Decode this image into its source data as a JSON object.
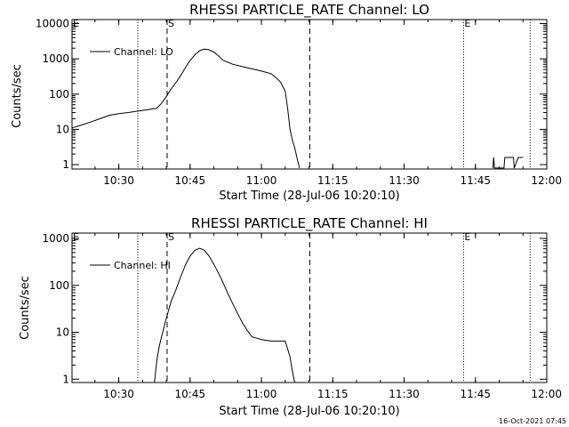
{
  "page": {
    "stamp": "16-Oct-2021 07:45"
  },
  "chart_data": [
    {
      "type": "line",
      "title": "RHESSI PARTICLE_RATE Channel: LO",
      "xlabel": "Start Time (28-Jul-06 10:20:10)",
      "ylabel": "Counts/sec",
      "y_scale": "log",
      "xlim": [
        "10:20:10",
        "12:00:00"
      ],
      "ylim": [
        0.75,
        13000
      ],
      "x_ticks": [
        "10:30",
        "10:45",
        "11:00",
        "11:15",
        "11:30",
        "11:45",
        "12:00"
      ],
      "y_ticks": [
        "1",
        "10",
        "100",
        "1000",
        "10000"
      ],
      "legend": {
        "position": "top-left",
        "entries": [
          "Channel: LO"
        ]
      },
      "markers": [
        {
          "label": "E",
          "time": "10:20:10",
          "style": "label-only"
        },
        {
          "label": "",
          "time": "10:34:00",
          "style": "dotted"
        },
        {
          "label": "S",
          "time": "10:40:10",
          "style": "dashed"
        },
        {
          "label": "",
          "time": "11:10:10",
          "style": "dashed"
        },
        {
          "label": "E",
          "time": "11:42:30",
          "style": "dotted"
        },
        {
          "label": "",
          "time": "11:56:30",
          "style": "dotted"
        }
      ],
      "series": [
        {
          "name": "Channel: LO",
          "segments": [
            {
              "x": [
                "10:20:10",
                "10:22:00",
                "10:24:00",
                "10:26:00",
                "10:28:00",
                "10:30:00",
                "10:32:00",
                "10:34:00",
                "10:36:00",
                "10:38:00",
                "10:39:00",
                "10:40:00",
                "10:41:00",
                "10:42:00",
                "10:43:00",
                "10:44:00",
                "10:45:00",
                "10:46:00",
                "10:47:00",
                "10:48:00",
                "10:49:00",
                "10:50:00",
                "10:51:00",
                "10:52:00",
                "10:54:00",
                "10:56:00",
                "10:58:00",
                "11:00:00",
                "11:02:00",
                "11:03:00",
                "11:04:00",
                "11:05:00",
                "11:05:30",
                "11:06:00",
                "11:06:30",
                "11:07:00",
                "11:07:30",
                "11:08:00"
              ],
              "y": [
                11,
                13,
                16,
                20,
                25,
                28,
                30,
                33,
                36,
                40,
                55,
                85,
                140,
                210,
                330,
                560,
                900,
                1300,
                1700,
                1900,
                1800,
                1550,
                1200,
                900,
                700,
                600,
                520,
                450,
                380,
                300,
                220,
                120,
                40,
                10,
                5,
                3,
                1.5,
                0.8
              ]
            },
            {
              "x": [
                "11:48:40",
                "11:48:50",
                "11:49:00",
                "11:50:00",
                "11:51:00",
                "11:51:10",
                "11:52:00",
                "11:53:00",
                "11:53:10",
                "11:54:00",
                "11:55:00"
              ],
              "y": [
                0.8,
                1.6,
                0.8,
                0.8,
                0.8,
                1.6,
                1.6,
                1.6,
                0.8,
                1.6,
                1.6
              ]
            }
          ]
        }
      ]
    },
    {
      "type": "line",
      "title": "RHESSI PARTICLE_RATE Channel: HI",
      "xlabel": "Start Time (28-Jul-06 10:20:10)",
      "ylabel": "Counts/sec",
      "y_scale": "log",
      "xlim": [
        "10:20:10",
        "12:00:00"
      ],
      "ylim": [
        0.85,
        1300
      ],
      "x_ticks": [
        "10:30",
        "10:45",
        "11:00",
        "11:15",
        "11:30",
        "11:45",
        "12:00"
      ],
      "y_ticks": [
        "1",
        "10",
        "100",
        "1000"
      ],
      "legend": {
        "position": "top-left",
        "entries": [
          "Channel: HI"
        ]
      },
      "markers": [
        {
          "label": "E",
          "time": "10:20:10",
          "style": "label-only"
        },
        {
          "label": "",
          "time": "10:34:00",
          "style": "dotted"
        },
        {
          "label": "S",
          "time": "10:40:10",
          "style": "dashed"
        },
        {
          "label": "",
          "time": "11:10:10",
          "style": "dashed"
        },
        {
          "label": "E",
          "time": "11:42:30",
          "style": "dotted"
        },
        {
          "label": "",
          "time": "11:56:30",
          "style": "dotted"
        }
      ],
      "series": [
        {
          "name": "Channel: HI",
          "segments": [
            {
              "x": [
                "10:37:30",
                "10:38:00",
                "10:38:30",
                "10:39:00",
                "10:40:00",
                "10:41:00",
                "10:42:00",
                "10:43:00",
                "10:44:00",
                "10:45:00",
                "10:46:00",
                "10:47:00",
                "10:48:00",
                "10:49:00",
                "10:50:00",
                "10:51:00",
                "10:52:00",
                "10:53:00",
                "10:54:00",
                "10:55:00",
                "10:56:00",
                "10:57:00",
                "10:58:00",
                "11:00:00",
                "11:02:00",
                "11:04:00",
                "11:05:00",
                "11:06:00",
                "11:06:30",
                "11:07:00"
              ],
              "y": [
                0.85,
                2.5,
                5,
                8,
                20,
                45,
                80,
                150,
                270,
                420,
                560,
                620,
                560,
                420,
                280,
                180,
                110,
                65,
                40,
                25,
                16,
                11,
                8,
                7,
                6.5,
                6.5,
                6.5,
                3,
                1.5,
                0.85
              ]
            }
          ]
        }
      ]
    }
  ]
}
